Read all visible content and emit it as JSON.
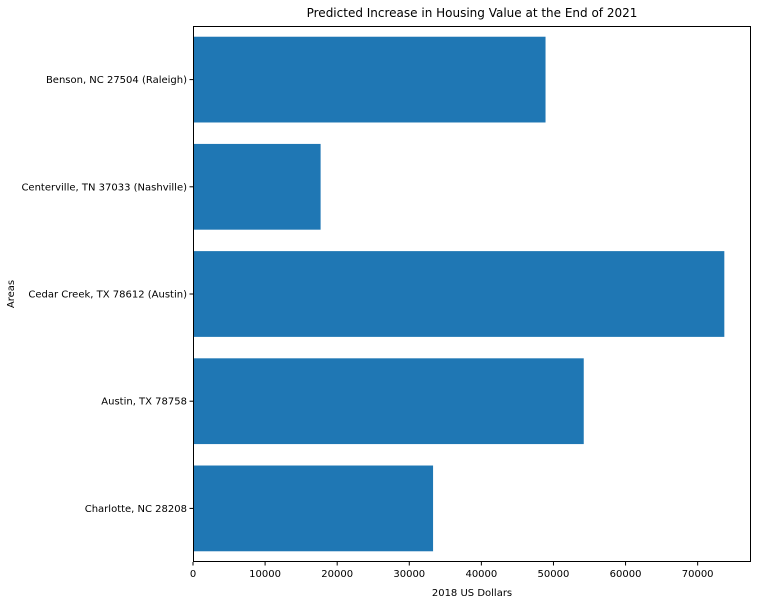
{
  "chart_data": {
    "type": "bar",
    "orientation": "horizontal",
    "title": "Predicted Increase in Housing Value at the End of 2021",
    "xlabel": "2018 US Dollars",
    "ylabel": "Areas",
    "categories": [
      "Benson, NC 27504 (Raleigh)",
      "Centerville, TN 37033 (Nashville)",
      "Cedar Creek, TX 78612 (Austin)",
      "Austin, TX 78758",
      "Charlotte, NC 28208"
    ],
    "values": [
      48900,
      17700,
      73700,
      54200,
      33300
    ],
    "xlim": [
      0,
      77400
    ],
    "xticks": [
      0,
      10000,
      20000,
      30000,
      40000,
      50000,
      60000,
      70000
    ],
    "bar_color": "#1f77b4",
    "grid": false,
    "legend": false
  }
}
